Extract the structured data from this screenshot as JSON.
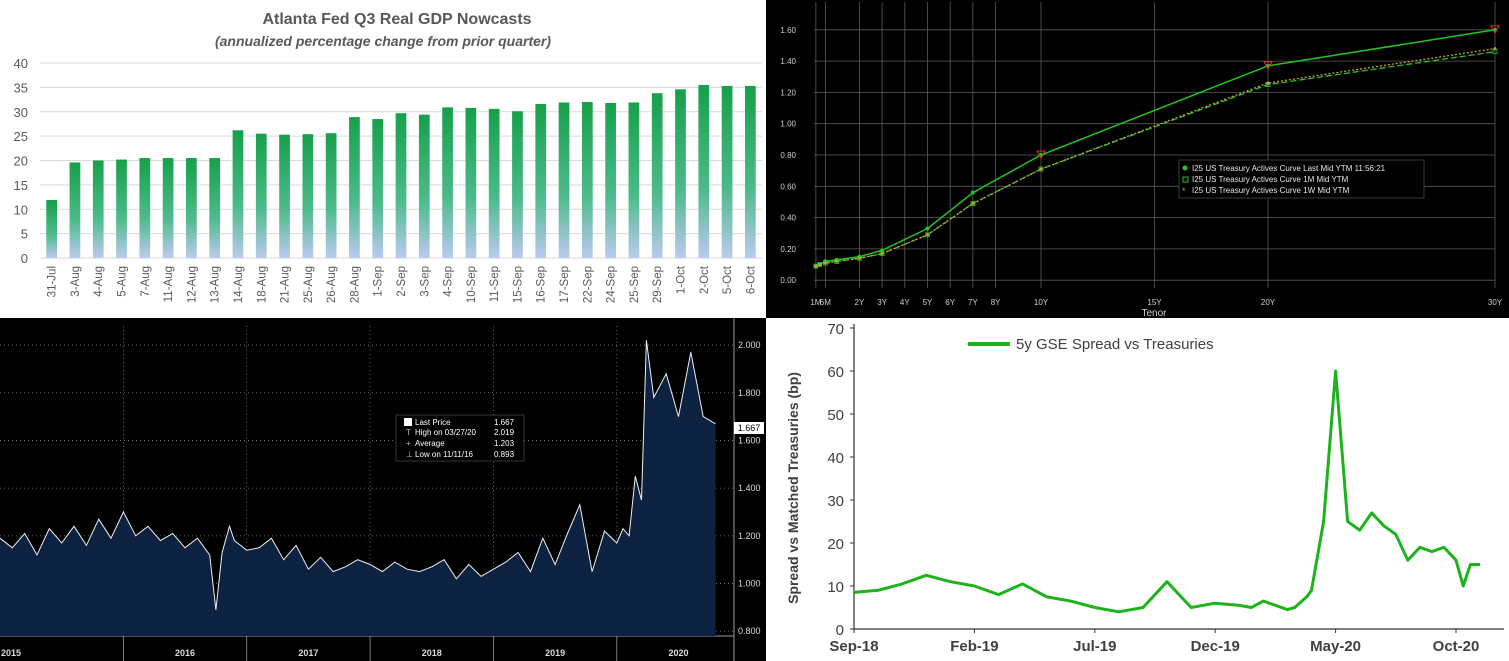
{
  "chart_data": [
    {
      "type": "bar",
      "title": "Atlanta Fed Q3 Real GDP Nowcasts",
      "subtitle": "(annualized percentage change from prior quarter)",
      "categories": [
        "31-Jul",
        "3-Aug",
        "4-Aug",
        "5-Aug",
        "7-Aug",
        "11-Aug",
        "12-Aug",
        "13-Aug",
        "14-Aug",
        "18-Aug",
        "21-Aug",
        "25-Aug",
        "26-Aug",
        "28-Aug",
        "1-Sep",
        "2-Sep",
        "3-Sep",
        "4-Sep",
        "10-Sep",
        "11-Sep",
        "15-Sep",
        "16-Sep",
        "17-Sep",
        "22-Sep",
        "24-Sep",
        "25-Sep",
        "29-Sep",
        "1-Oct",
        "2-Oct",
        "5-Oct",
        "6-Oct"
      ],
      "values": [
        11.9,
        19.6,
        20.0,
        20.2,
        20.5,
        20.5,
        20.5,
        20.5,
        26.2,
        25.5,
        25.3,
        25.4,
        25.6,
        28.9,
        28.5,
        29.7,
        29.4,
        30.9,
        30.8,
        30.6,
        30.1,
        31.6,
        31.9,
        32.0,
        31.8,
        31.9,
        33.8,
        34.6,
        35.5,
        35.3,
        35.3
      ],
      "yticks": [
        "0",
        "5",
        "10",
        "15",
        "20",
        "25",
        "30",
        "35",
        "40"
      ],
      "ylim": [
        0,
        40
      ],
      "grid": true,
      "colors": {
        "bar_top": "#1aa04a",
        "bar_bottom": "#b9c9ef",
        "text": "#595959",
        "grid": "#d9d9d9"
      }
    },
    {
      "type": "line",
      "xlabel": "Tenor",
      "x_ticks": [
        "1M",
        "6M",
        "2Y",
        "3Y",
        "4Y",
        "5Y",
        "6Y",
        "7Y",
        "8Y",
        "10Y",
        "15Y",
        "20Y",
        "30Y"
      ],
      "x_tick_years": [
        0.083,
        0.5,
        2,
        3,
        4,
        5,
        6,
        7,
        8,
        10,
        15,
        20,
        30
      ],
      "yticks": [
        "0.00",
        "0.20",
        "0.40",
        "0.60",
        "0.80",
        "1.00",
        "1.20",
        "1.40",
        "1.60"
      ],
      "ylim": [
        -0.05,
        1.65
      ],
      "legend": [
        "I25 US Treasury Actives Curve Last Mid YTM 11:56:21",
        "I25 US Treasury Actives Curve 1M Mid YTM",
        "I25 US Treasury Actives Curve 1W Mid YTM"
      ],
      "legend_placement": "center-right",
      "x": [
        0.083,
        0.25,
        0.5,
        1,
        2,
        3,
        5,
        7,
        10,
        20,
        30
      ],
      "series": [
        {
          "name": "I25 US Treasury Actives Curve Last Mid YTM 11:56:21",
          "color": "#22c522",
          "values": [
            0.09,
            0.1,
            0.12,
            0.13,
            0.15,
            0.19,
            0.33,
            0.56,
            0.8,
            1.37,
            1.6
          ]
        },
        {
          "name": "I25 US Treasury Actives Curve 1M Mid YTM",
          "color": "#22c522",
          "values": [
            0.09,
            0.1,
            0.11,
            0.12,
            0.14,
            0.17,
            0.29,
            0.49,
            0.71,
            1.25,
            1.46
          ]
        },
        {
          "name": "I25 US Treasury Actives Curve 1W Mid YTM",
          "color": "#c8a040",
          "values": [
            0.09,
            0.1,
            0.11,
            0.12,
            0.14,
            0.17,
            0.29,
            0.49,
            0.71,
            1.26,
            1.48
          ]
        }
      ],
      "colors": {
        "grid": "#5a5a5a",
        "text": "#cfcfcf",
        "marker_last": "#e03030"
      }
    },
    {
      "type": "area",
      "xlabels": [
        "2015",
        "2016",
        "2017",
        "2018",
        "2019",
        "2020"
      ],
      "yticks": [
        "0.800",
        "1.000",
        "1.200",
        "1.400",
        "1.600",
        "1.800",
        "2.000"
      ],
      "ylim": [
        0.78,
        2.08
      ],
      "x_years": [
        2015.0,
        2015.1,
        2015.2,
        2015.3,
        2015.4,
        2015.5,
        2015.6,
        2015.7,
        2015.8,
        2015.9,
        2016.0,
        2016.1,
        2016.2,
        2016.3,
        2016.4,
        2016.5,
        2016.6,
        2016.7,
        2016.75,
        2016.8,
        2016.86,
        2016.9,
        2017.0,
        2017.1,
        2017.2,
        2017.3,
        2017.4,
        2017.5,
        2017.6,
        2017.7,
        2017.8,
        2017.9,
        2018.0,
        2018.1,
        2018.2,
        2018.3,
        2018.4,
        2018.5,
        2018.6,
        2018.7,
        2018.8,
        2018.9,
        2019.0,
        2019.1,
        2019.2,
        2019.3,
        2019.4,
        2019.5,
        2019.6,
        2019.7,
        2019.8,
        2019.9,
        2020.0,
        2020.05,
        2020.1,
        2020.15,
        2020.2,
        2020.24,
        2020.3,
        2020.4,
        2020.5,
        2020.6,
        2020.7,
        2020.8
      ],
      "values": [
        1.19,
        1.15,
        1.21,
        1.12,
        1.23,
        1.17,
        1.24,
        1.16,
        1.27,
        1.19,
        1.3,
        1.2,
        1.24,
        1.18,
        1.21,
        1.15,
        1.19,
        1.12,
        0.89,
        1.13,
        1.24,
        1.18,
        1.14,
        1.15,
        1.19,
        1.1,
        1.16,
        1.06,
        1.11,
        1.05,
        1.07,
        1.1,
        1.08,
        1.05,
        1.09,
        1.06,
        1.05,
        1.07,
        1.1,
        1.02,
        1.08,
        1.03,
        1.06,
        1.09,
        1.13,
        1.05,
        1.19,
        1.08,
        1.21,
        1.33,
        1.05,
        1.22,
        1.17,
        1.23,
        1.2,
        1.45,
        1.35,
        2.02,
        1.78,
        1.88,
        1.7,
        1.97,
        1.7,
        1.67
      ],
      "legend": [
        {
          "label": "Last Price",
          "value": "1.667"
        },
        {
          "label": "High on 03/27/20",
          "value": "2.019"
        },
        {
          "label": "Average",
          "value": "1.203"
        },
        {
          "label": "Low on 11/11/16",
          "value": "0.893"
        }
      ],
      "last_value_label": "1.667",
      "colors": {
        "fill": "#0d2240",
        "line": "#f0f0f0",
        "grid": "#808080",
        "text": "#dddddd"
      }
    },
    {
      "type": "line",
      "ylabel": "Spread vs Matched Treasuries (bp)",
      "xlabels": [
        "Sep-18",
        "Feb-19",
        "Jul-19",
        "Dec-19",
        "May-20",
        "Oct-20"
      ],
      "yticks": [
        "0",
        "10",
        "20",
        "30",
        "40",
        "50",
        "60",
        "70"
      ],
      "ylim": [
        0,
        70
      ],
      "series": [
        {
          "name": "5y GSE Spread vs Treasuries",
          "color": "#1db31d",
          "x_months": [
            0,
            1,
            2,
            3,
            4,
            5,
            6,
            7,
            8,
            9,
            10,
            11,
            12,
            13,
            14,
            15,
            16,
            16.5,
            17,
            18,
            18.3,
            18.6,
            18.8,
            19,
            19.5,
            20,
            20.5,
            21,
            21.5,
            22,
            22.5,
            23,
            23.5,
            24,
            24.5,
            25,
            25.3,
            25.6,
            26
          ],
          "values": [
            8.5,
            9,
            10.5,
            12.5,
            11,
            10,
            8,
            10.5,
            7.5,
            6.5,
            5,
            4,
            5,
            11,
            5,
            6,
            5.5,
            5,
            6.5,
            4.5,
            5,
            6.5,
            7.5,
            9,
            25,
            60,
            25,
            23,
            27,
            24,
            22,
            16,
            19,
            18,
            19,
            16,
            10,
            15,
            15
          ]
        }
      ],
      "legend_placement": "top-left",
      "colors": {
        "axis": "#333333",
        "text": "#404040"
      }
    }
  ]
}
